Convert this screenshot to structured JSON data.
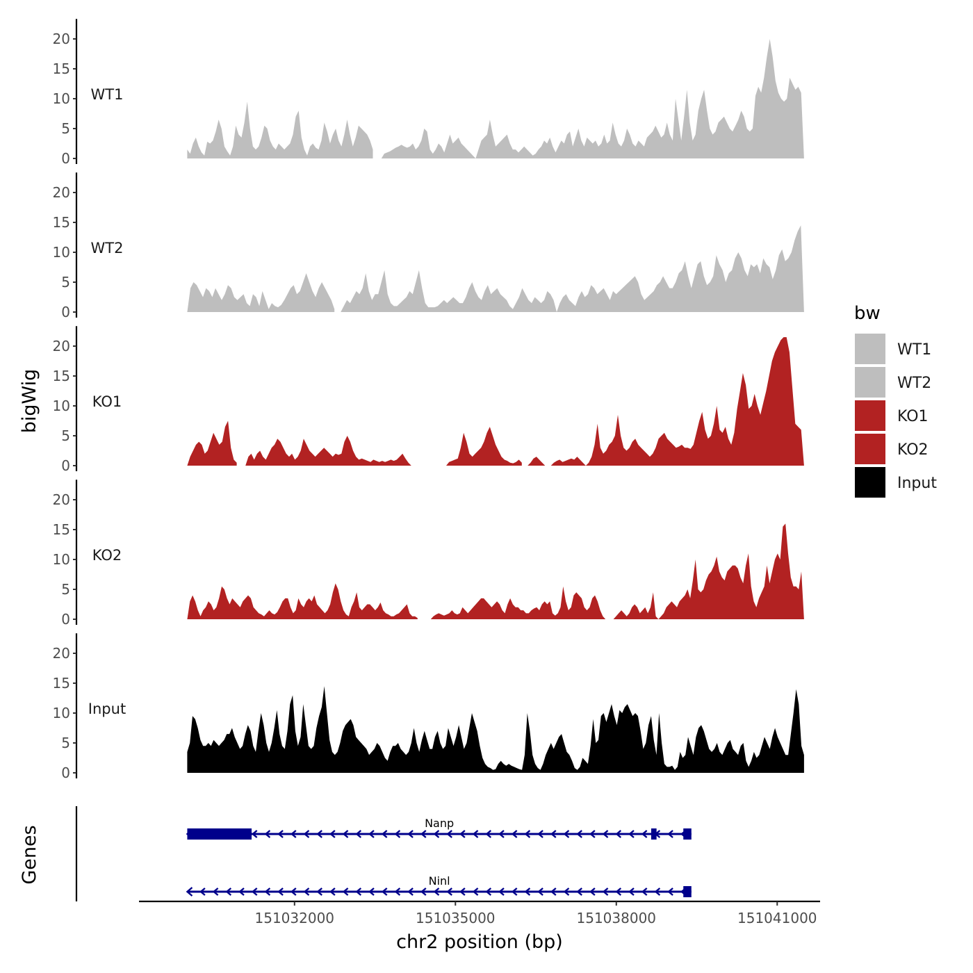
{
  "chart_data": {
    "type": "area",
    "title": "",
    "xlabel": "chr2 position (bp)",
    "ylabel": "bigWig",
    "genes_label": "Genes",
    "xlim": [
      151029100,
      151041800
    ],
    "ylim": [
      0,
      23
    ],
    "x_ticks": [
      151032000,
      151035000,
      151038000,
      151041000
    ],
    "x_tick_labels": [
      "151032000",
      "151035000",
      "151038000",
      "151041000"
    ],
    "y_ticks": [
      0,
      5,
      10,
      15,
      20
    ],
    "y_tick_labels": [
      "0",
      "5",
      "10",
      "15",
      "20"
    ],
    "x_start": 151030000,
    "x_end": 151041500,
    "legend": {
      "title": "bw",
      "position": "right",
      "entries": [
        {
          "name": "WT1",
          "color": "#bebebe"
        },
        {
          "name": "WT2",
          "color": "#bebebe"
        },
        {
          "name": "KO1",
          "color": "#b22222"
        },
        {
          "name": "KO2",
          "color": "#b22222"
        },
        {
          "name": "Input",
          "color": "#000000"
        }
      ]
    },
    "series": [
      {
        "name": "WT1",
        "color": "#bebebe",
        "values": [
          1.5,
          0.8,
          2.5,
          3.5,
          2.0,
          1.0,
          0.5,
          2.8,
          2.5,
          3.0,
          4.5,
          6.5,
          5.0,
          2.0,
          1.2,
          0.5,
          2.0,
          5.5,
          4.0,
          3.5,
          6.0,
          9.5,
          5.0,
          2.0,
          1.5,
          2.0,
          3.5,
          5.5,
          5.0,
          3.0,
          2.0,
          1.5,
          2.5,
          2.0,
          1.5,
          2.0,
          2.5,
          4.0,
          7.0,
          8.0,
          3.5,
          1.5,
          0.5,
          2.0,
          2.5,
          1.8,
          1.5,
          3.0,
          6.0,
          4.5,
          2.5,
          4.0,
          5.0,
          3.0,
          2.0,
          4.0,
          6.5,
          4.0,
          2.0,
          3.5,
          5.5,
          5.0,
          4.5,
          4.0,
          3.0,
          1.5,
          null,
          null,
          0,
          0.8,
          1.0,
          1.2,
          1.5,
          1.8,
          2.0,
          2.3,
          2.0,
          1.8,
          2.0,
          2.5,
          1.5,
          2.0,
          3.0,
          5.0,
          4.5,
          1.5,
          0.8,
          1.5,
          2.5,
          2.0,
          1.0,
          2.5,
          4.0,
          2.5,
          3.0,
          3.5,
          2.5,
          2.0,
          1.5,
          1.0,
          0.5,
          0,
          1.5,
          3.0,
          3.5,
          4.0,
          6.5,
          4.0,
          2.0,
          2.5,
          3.0,
          3.5,
          4.0,
          2.5,
          1.5,
          1.5,
          1.0,
          1.5,
          2.0,
          1.5,
          1.0,
          0.5,
          0.8,
          1.5,
          2.0,
          3.0,
          2.5,
          3.5,
          2.0,
          1.0,
          2.0,
          3.0,
          2.5,
          4.0,
          4.5,
          2.0,
          3.5,
          5.0,
          3.0,
          2.0,
          3.5,
          3.0,
          2.5,
          3.0,
          2.0,
          2.5,
          4.0,
          2.5,
          3.0,
          6.0,
          4.0,
          2.5,
          2.0,
          3.0,
          5.0,
          4.0,
          2.5,
          2.0,
          3.0,
          2.5,
          2.0,
          3.5,
          4.0,
          4.5,
          5.5,
          4.5,
          3.5,
          4.0,
          6.0,
          4.0,
          3.0,
          10.0,
          6.5,
          3.0,
          7.0,
          11.5,
          6.0,
          3.0,
          4.0,
          8.0,
          10.0,
          11.5,
          8.0,
          5.0,
          4.0,
          4.5,
          6.0,
          6.5,
          7.0,
          6.0,
          5.0,
          4.5,
          5.5,
          6.5,
          8.0,
          7.0,
          5.0,
          4.5,
          5.0,
          10.5,
          12.0,
          11.0,
          13.5,
          17.0,
          20.0,
          17.0,
          13.0,
          11.0,
          10.0,
          9.5,
          10.0,
          13.5,
          12.5,
          11.5,
          12.0,
          11.0,
          0
        ]
      },
      {
        "name": "WT2",
        "color": "#bebebe",
        "values": [
          0,
          4.0,
          5.0,
          4.5,
          3.5,
          2.5,
          4.0,
          3.5,
          2.5,
          4.0,
          3.0,
          2.0,
          3.0,
          4.5,
          4.0,
          2.5,
          2.0,
          2.5,
          3.0,
          1.5,
          1.0,
          3.0,
          2.5,
          1.0,
          3.5,
          2.0,
          0.5,
          1.5,
          1.0,
          0.8,
          1.2,
          2.0,
          3.0,
          4.0,
          4.5,
          3.0,
          3.5,
          5.0,
          6.5,
          5.0,
          3.5,
          2.5,
          4.0,
          5.0,
          4.0,
          3.0,
          2.0,
          0.5,
          null,
          0,
          1.0,
          2.0,
          1.5,
          2.5,
          3.5,
          3.0,
          4.0,
          6.5,
          3.5,
          2.0,
          3.0,
          3.0,
          5.0,
          7.0,
          3.0,
          1.5,
          1.0,
          1.0,
          1.5,
          2.0,
          2.5,
          3.5,
          3.0,
          5.0,
          7.0,
          4.0,
          1.5,
          0.8,
          0.8,
          0.8,
          1.0,
          1.5,
          2.0,
          1.5,
          2.0,
          2.5,
          2.0,
          1.5,
          1.5,
          2.5,
          4.0,
          5.0,
          3.5,
          2.5,
          2.0,
          3.5,
          4.5,
          3.0,
          3.5,
          4.0,
          3.0,
          2.5,
          2.0,
          1.0,
          0.5,
          1.5,
          2.5,
          4.0,
          3.0,
          2.0,
          1.5,
          2.5,
          2.0,
          1.5,
          2.0,
          3.5,
          3.0,
          2.0,
          0,
          1.5,
          2.5,
          3.0,
          2.0,
          1.5,
          1.0,
          2.5,
          3.5,
          2.5,
          3.0,
          4.5,
          4.0,
          3.0,
          3.5,
          4.0,
          3.0,
          2.0,
          3.5,
          3.0,
          3.5,
          4.0,
          4.5,
          5.0,
          5.5,
          6.0,
          5.0,
          3.0,
          2.0,
          2.5,
          3.0,
          3.5,
          4.5,
          5.0,
          6.0,
          5.0,
          4.0,
          4.0,
          5.0,
          6.5,
          7.0,
          8.5,
          6.0,
          4.0,
          6.0,
          8.0,
          8.5,
          6.0,
          4.5,
          5.0,
          6.0,
          9.5,
          8.0,
          7.0,
          5.0,
          6.5,
          7.0,
          9.0,
          10.0,
          9.0,
          7.0,
          6.0,
          8.0,
          7.5,
          8.0,
          6.5,
          9.0,
          8.0,
          7.5,
          5.5,
          7.0,
          9.5,
          10.5,
          8.5,
          9.0,
          10.0,
          12.0,
          13.5,
          14.5,
          0
        ]
      },
      {
        "name": "KO1",
        "color": "#b22222",
        "values": [
          0,
          1.5,
          2.5,
          3.5,
          4.0,
          3.5,
          2.0,
          2.5,
          4.0,
          5.5,
          4.5,
          3.5,
          4.0,
          6.5,
          7.5,
          3.0,
          1.0,
          0.5,
          null,
          null,
          0,
          1.5,
          2.0,
          1.0,
          2.0,
          2.5,
          1.5,
          1.0,
          2.0,
          3.0,
          3.5,
          4.5,
          4.0,
          3.0,
          2.0,
          1.5,
          2.0,
          1.0,
          1.5,
          2.5,
          4.5,
          3.5,
          2.5,
          2.0,
          1.5,
          2.0,
          2.5,
          3.0,
          2.5,
          2.0,
          1.5,
          2.0,
          1.8,
          2.0,
          4.0,
          5.0,
          4.0,
          2.5,
          1.5,
          1.0,
          1.2,
          1.0,
          0.8,
          0.6,
          1.0,
          0.8,
          0.6,
          0.8,
          0.6,
          0.8,
          1.0,
          0.8,
          1.0,
          1.5,
          2.0,
          1.2,
          0.5,
          0,
          null,
          null,
          null,
          null,
          null,
          null,
          null,
          null,
          null,
          null,
          null,
          0,
          0.6,
          0.8,
          1.0,
          1.2,
          3.0,
          5.5,
          4.0,
          2.0,
          1.5,
          2.0,
          2.5,
          3.0,
          4.0,
          5.5,
          6.5,
          5.0,
          3.5,
          2.5,
          1.5,
          1.0,
          0.8,
          0.5,
          0.4,
          0.6,
          1.0,
          0.5,
          null,
          0,
          0.5,
          1.2,
          1.5,
          1.0,
          0.5,
          0,
          null,
          0,
          0.5,
          0.8,
          1.0,
          0.6,
          0.8,
          1.0,
          1.2,
          1.0,
          1.5,
          1.0,
          0.5,
          0,
          0.5,
          1.5,
          3.5,
          7.0,
          3.0,
          2.0,
          2.5,
          3.5,
          4.0,
          5.0,
          8.5,
          5.0,
          3.0,
          2.5,
          3.0,
          4.0,
          4.5,
          3.5,
          3.0,
          2.5,
          2.0,
          1.5,
          2.0,
          3.0,
          4.5,
          5.0,
          5.5,
          4.5,
          4.0,
          3.5,
          3.0,
          3.2,
          3.5,
          3.0,
          3.0,
          2.8,
          3.5,
          5.5,
          7.5,
          9.0,
          6.0,
          4.5,
          5.0,
          7.0,
          10.0,
          6.0,
          5.5,
          6.5,
          4.5,
          3.5,
          5.5,
          9.5,
          12.5,
          15.5,
          13.5,
          9.5,
          10.0,
          12.0,
          10.0,
          8.5,
          10.5,
          12.5,
          15.0,
          17.5,
          19.0,
          20.0,
          21.0,
          21.5,
          21.5,
          19.0,
          13.0,
          7.0,
          6.5,
          6.0,
          0
        ]
      },
      {
        "name": "KO2",
        "color": "#b22222",
        "values": [
          0,
          3.0,
          4.0,
          3.0,
          1.5,
          0.5,
          1.5,
          2.0,
          3.0,
          2.5,
          1.5,
          2.0,
          3.5,
          5.5,
          5.0,
          3.5,
          2.5,
          3.5,
          3.0,
          2.5,
          2.0,
          3.0,
          3.5,
          4.0,
          3.5,
          2.0,
          1.5,
          1.0,
          0.8,
          0.5,
          1.0,
          1.5,
          1.0,
          0.8,
          1.2,
          2.0,
          3.0,
          3.5,
          3.5,
          2.0,
          1.0,
          1.5,
          3.5,
          2.5,
          2.0,
          3.0,
          3.5,
          3.0,
          4.0,
          2.5,
          2.0,
          1.5,
          1.0,
          1.5,
          2.5,
          4.5,
          6.0,
          5.0,
          3.0,
          1.5,
          0.8,
          0.5,
          2.0,
          3.0,
          4.5,
          2.0,
          1.5,
          2.0,
          2.5,
          2.5,
          2.0,
          1.5,
          2.0,
          2.8,
          1.5,
          1.0,
          0.8,
          0.5,
          0.5,
          0.8,
          1.0,
          1.5,
          2.0,
          2.5,
          1.0,
          0.5,
          0.5,
          0.2,
          null,
          null,
          null,
          null,
          0,
          0.5,
          0.8,
          1.0,
          0.8,
          0.6,
          0.8,
          1.0,
          1.5,
          1.0,
          0.8,
          1.0,
          2.0,
          1.5,
          1.0,
          1.5,
          2.0,
          2.5,
          3.0,
          3.5,
          3.5,
          3.0,
          2.5,
          2.0,
          2.5,
          3.0,
          2.5,
          1.5,
          1.0,
          2.5,
          3.5,
          2.5,
          2.0,
          2.0,
          1.5,
          1.5,
          1.0,
          1.0,
          1.5,
          1.8,
          2.0,
          1.5,
          2.5,
          3.0,
          2.5,
          3.0,
          1.0,
          0.6,
          1.0,
          2.0,
          5.5,
          3.0,
          1.5,
          2.0,
          4.0,
          4.5,
          4.0,
          3.5,
          2.0,
          1.5,
          2.0,
          3.5,
          4.0,
          3.0,
          1.5,
          0.5,
          0,
          null,
          null,
          0,
          0.5,
          1.0,
          1.5,
          1.0,
          0.5,
          1.0,
          2.0,
          2.5,
          2.0,
          1.0,
          1.5,
          2.0,
          1.0,
          2.0,
          4.5,
          0.5,
          0,
          0.5,
          1.0,
          2.0,
          2.5,
          3.0,
          2.5,
          2.0,
          3.0,
          3.5,
          4.0,
          5.0,
          3.5,
          6.5,
          10.0,
          5.0,
          4.5,
          5.0,
          6.5,
          7.5,
          8.0,
          9.0,
          10.5,
          8.0,
          7.0,
          6.5,
          8.0,
          8.5,
          9.0,
          9.0,
          8.5,
          7.0,
          6.0,
          9.0,
          11.0,
          5.5,
          3.0,
          2.0,
          3.5,
          4.5,
          5.5,
          9.0,
          6.0,
          8.0,
          10.0,
          11.0,
          10.0,
          15.5,
          16.0,
          11.0,
          7.0,
          5.5,
          5.5,
          5.0,
          8.0,
          0
        ]
      },
      {
        "name": "Input",
        "color": "#000000",
        "values": [
          3.5,
          5.0,
          9.5,
          9.0,
          7.5,
          5.5,
          4.5,
          4.5,
          5.0,
          4.5,
          5.5,
          5.0,
          4.5,
          5.0,
          5.5,
          6.5,
          6.5,
          7.5,
          6.0,
          5.0,
          4.0,
          4.5,
          6.5,
          8.0,
          7.0,
          4.5,
          3.5,
          7.0,
          10.0,
          8.0,
          5.0,
          3.5,
          5.0,
          7.5,
          10.5,
          6.5,
          4.5,
          4.0,
          7.0,
          11.5,
          13.0,
          7.0,
          4.5,
          6.0,
          11.5,
          8.0,
          4.5,
          4.0,
          4.5,
          7.5,
          9.5,
          11.0,
          14.5,
          10.0,
          5.5,
          3.5,
          3.0,
          3.5,
          5.0,
          7.0,
          8.0,
          8.5,
          9.0,
          8.0,
          6.0,
          5.5,
          5.0,
          4.5,
          4.0,
          3.0,
          3.5,
          4.0,
          5.0,
          4.5,
          3.5,
          2.5,
          2.0,
          3.5,
          4.5,
          4.5,
          5.0,
          4.0,
          3.5,
          3.0,
          3.5,
          5.0,
          7.5,
          5.0,
          3.5,
          5.5,
          7.0,
          5.5,
          4.0,
          4.0,
          6.0,
          7.0,
          5.0,
          4.0,
          4.5,
          7.5,
          6.0,
          4.5,
          6.0,
          8.0,
          6.0,
          4.0,
          5.0,
          7.5,
          10.0,
          8.5,
          7.0,
          4.5,
          2.5,
          1.5,
          1.0,
          0.8,
          0.5,
          0.6,
          1.5,
          2.0,
          1.5,
          1.2,
          1.5,
          1.2,
          1.0,
          0.8,
          0.6,
          0.5,
          3.0,
          10.0,
          7.0,
          3.0,
          1.5,
          0.8,
          0.5,
          1.5,
          3.0,
          4.0,
          5.0,
          4.0,
          5.0,
          6.0,
          6.5,
          5.0,
          3.5,
          3.0,
          2.0,
          0.8,
          0.5,
          1.0,
          2.5,
          2.0,
          1.5,
          4.5,
          9.0,
          5.0,
          5.5,
          9.5,
          10.0,
          8.5,
          10.0,
          11.5,
          9.5,
          8.0,
          10.5,
          10.0,
          11.0,
          11.5,
          10.5,
          9.5,
          10.0,
          9.5,
          7.0,
          4.0,
          5.0,
          8.0,
          9.5,
          5.5,
          3.0,
          10.0,
          5.0,
          1.5,
          1.0,
          1.0,
          1.2,
          0.5,
          1.0,
          3.5,
          2.5,
          3.0,
          6.0,
          4.5,
          3.0,
          6.0,
          7.5,
          8.0,
          7.0,
          5.5,
          4.0,
          3.5,
          4.0,
          5.0,
          3.5,
          3.0,
          4.0,
          5.0,
          5.5,
          4.0,
          3.5,
          3.0,
          4.5,
          5.0,
          2.0,
          1.0,
          2.0,
          3.5,
          2.5,
          3.0,
          4.5,
          6.0,
          5.0,
          4.0,
          6.0,
          7.5,
          6.0,
          5.0,
          4.0,
          3.0,
          3.0,
          6.5,
          10.0,
          14.0,
          11.5,
          4.5,
          3.0
        ]
      }
    ],
    "genes": [
      {
        "name": "Nanp",
        "start": 151030000,
        "end": 151039400,
        "strand": "-",
        "exons": [
          [
            151030000,
            151031200
          ],
          [
            151038650,
            151038750
          ],
          [
            151039250,
            151039400
          ]
        ]
      },
      {
        "name": "Ninl",
        "start": 151030000,
        "end": 151039400,
        "strand": "-",
        "exons": [
          [
            151039250,
            151039400
          ]
        ]
      }
    ]
  }
}
